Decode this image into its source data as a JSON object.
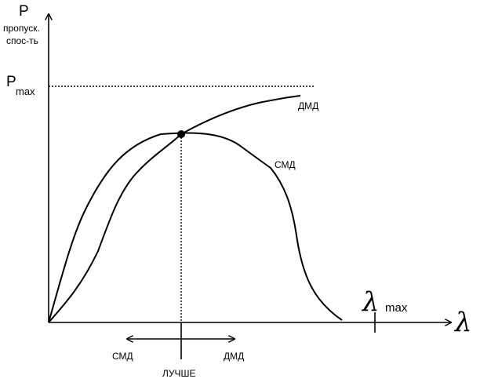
{
  "axes": {
    "y_label": "P",
    "y_caption_line1": "пропуск.",
    "y_caption_line2": "спос-ть",
    "p_max_symbol": "P",
    "p_max_subscript": "max",
    "x_symbol": "λ",
    "lambda_max_symbol": "λ",
    "lambda_max_subscript": "max"
  },
  "curves": {
    "dmd": "ДМД",
    "smd": "СМД"
  },
  "bottom": {
    "left_label": "СМД",
    "right_label": "ДМД",
    "center_label": "ЛУЧШЕ"
  },
  "colors": {
    "ink": "#000000",
    "background": "#ffffff"
  }
}
